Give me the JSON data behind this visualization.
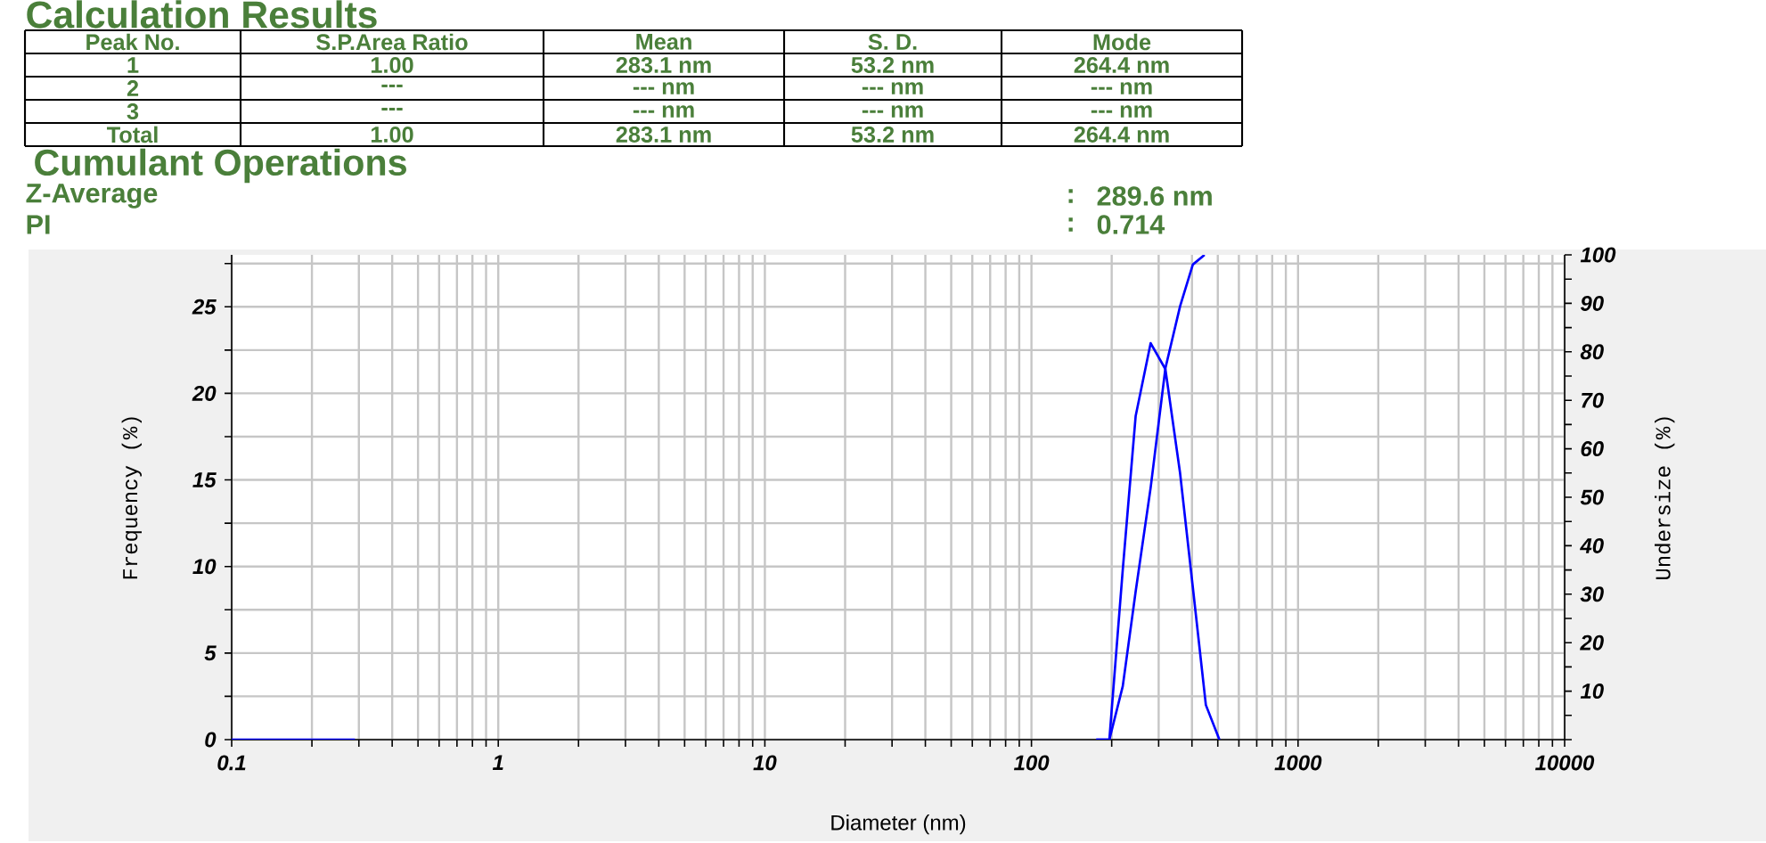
{
  "chart_data": {
    "type": "line",
    "title": "Calculation Results",
    "subtitle": "Cumulant Operations",
    "annotations": [
      "Peak No.",
      "S.P.Area Ratio",
      "Mean",
      "S. D.",
      "Mode",
      "1",
      "1.00",
      "283.1 nm",
      "53.2 nm",
      "264.4 nm",
      "2",
      "---",
      "--- nm",
      "--- nm",
      "--- nm",
      "3",
      "---",
      "--- nm",
      "--- nm",
      "--- nm",
      "Total",
      "1.00",
      "283.1 nm",
      "53.2 nm",
      "264.4 nm",
      "Z-Average",
      ":",
      "289.6 nm",
      "PI",
      ":",
      "0.714"
    ],
    "xlabel": "Diameter (nm)",
    "ylabel": "Frequency (%)",
    "y2label": "Undersize (%)",
    "log": "x",
    "grid": true,
    "marker": "none",
    "line_style": "solid",
    "xlim": [
      0.1,
      10000
    ],
    "ylim": [
      0,
      28
    ],
    "y2lim": [
      0,
      100
    ],
    "xticks": [
      0.1,
      {
        "value": 0.2,
        "label": null
      },
      {
        "value": 0.3,
        "label": null
      },
      {
        "value": 0.4,
        "label": null
      },
      {
        "value": 0.5,
        "label": null
      },
      {
        "value": 0.6,
        "label": null
      },
      {
        "value": 0.7,
        "label": null
      },
      {
        "value": 0.8,
        "label": null
      },
      {
        "value": 0.9,
        "label": null
      },
      1,
      {
        "value": 2,
        "label": null
      },
      {
        "value": 3,
        "label": null
      },
      {
        "value": 4,
        "label": null
      },
      {
        "value": 5,
        "label": null
      },
      {
        "value": 6,
        "label": null
      },
      {
        "value": 7,
        "label": null
      },
      {
        "value": 8,
        "label": null
      },
      {
        "value": 9,
        "label": null
      },
      10,
      {
        "value": 20,
        "label": null
      },
      {
        "value": 30,
        "label": null
      },
      {
        "value": 40,
        "label": null
      },
      {
        "value": 50,
        "label": null
      },
      {
        "value": 60,
        "label": null
      },
      {
        "value": 70,
        "label": null
      },
      {
        "value": 80,
        "label": null
      },
      {
        "value": 90,
        "label": null
      },
      100,
      {
        "value": 200,
        "label": null
      },
      {
        "value": 300,
        "label": null
      },
      {
        "value": 400,
        "label": null
      },
      {
        "value": 500,
        "label": null
      },
      {
        "value": 600,
        "label": null
      },
      {
        "value": 700,
        "label": null
      },
      {
        "value": 800,
        "label": null
      },
      {
        "value": 900,
        "label": null
      },
      1000,
      {
        "value": 2000,
        "label": null
      },
      {
        "value": 3000,
        "label": null
      },
      {
        "value": 4000,
        "label": null
      },
      {
        "value": 5000,
        "label": null
      },
      {
        "value": 6000,
        "label": null
      },
      {
        "value": 7000,
        "label": null
      },
      {
        "value": 8000,
        "label": null
      },
      {
        "value": 9000,
        "label": null
      },
      10000
    ],
    "yticks": [
      0,
      {
        "value": 2.5,
        "label": null
      },
      5,
      {
        "value": 7.5,
        "label": null
      },
      10,
      {
        "value": 12.5,
        "label": null
      },
      15,
      {
        "value": 17.5,
        "label": null
      },
      20,
      {
        "value": 22.5,
        "label": null
      },
      25,
      {
        "value": 27.5,
        "label": null
      }
    ],
    "y2ticks": [
      {
        "value": 0,
        "label": null
      },
      {
        "value": 5,
        "label": null
      },
      10,
      {
        "value": 15,
        "label": null
      },
      20,
      {
        "value": 25,
        "label": null
      },
      30,
      {
        "value": 35,
        "label": null
      },
      40,
      {
        "value": 45,
        "label": null
      },
      50,
      {
        "value": 55,
        "label": null
      },
      60,
      {
        "value": 65,
        "label": null
      },
      70,
      {
        "value": 75,
        "label": null
      },
      80,
      {
        "value": 85,
        "label": null
      },
      90,
      {
        "value": 95,
        "label": null
      },
      100
    ],
    "series": [
      {
        "color": "#0000ff",
        "x": [
          0.1,
          0.29,
          null,
          175,
          196,
          220,
          246,
          280,
          318,
          361,
          403,
          451,
          507
        ],
        "values": [
          0,
          0,
          null,
          0,
          0,
          9.8,
          18.7,
          22.9,
          21.4,
          15.4,
          8.8,
          2.0,
          0
        ]
      },
      {
        "color": "#0000ff",
        "axis": "y2",
        "x": [
          175,
          196,
          220,
          246,
          280,
          318,
          361,
          403,
          446
        ],
        "values": [
          0,
          0,
          11,
          30.6,
          52,
          76.6,
          89.4,
          98,
          100
        ]
      }
    ]
  }
}
